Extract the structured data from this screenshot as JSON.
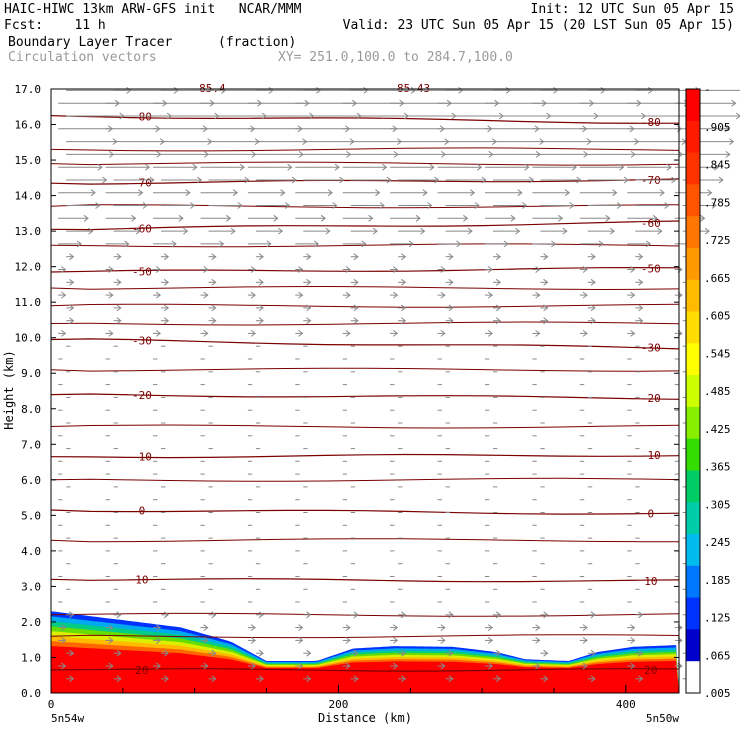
{
  "header": {
    "line1_left": "HAIC-HIWC 13km ARW-GFS init   NCAR/MMM",
    "line1_right": "Init: 12 UTC Sun 05 Apr 15",
    "line2_left": "Fcst:    11 h",
    "line2_right": "Valid: 23 UTC Sun 05 Apr 15 (20 LST Sun 05 Apr 15)",
    "line3_left": "Boundary Layer Tracer",
    "line3_units": "(fraction)",
    "line4_left": "Circulation vectors",
    "line4_xy": "XY= 251.0,100.0 to 284.7,100.0"
  },
  "chart_data": {
    "type": "heatmap",
    "xlabel": "Distance (km)",
    "ylabel": "Height (km)",
    "xlim": [
      0,
      437
    ],
    "ylim": [
      0,
      17
    ],
    "x_ticks": [
      {
        "value": 0,
        "label": "0"
      },
      {
        "value": 200,
        "label": "200"
      },
      {
        "value": 400,
        "label": "400"
      }
    ],
    "x_end_labels": {
      "left": "5n54w",
      "right": "5n50w"
    },
    "y_ticks": [
      "0.0",
      "1.0",
      "2.0",
      "3.0",
      "4.0",
      "5.0",
      "6.0",
      "7.0",
      "8.0",
      "9.0",
      "10.0",
      "11.0",
      "12.0",
      "13.0",
      "14.0",
      "15.0",
      "16.0",
      "17.0"
    ],
    "colorbar": {
      "labels": [
        "-",
        ".905",
        ".845",
        ".785",
        ".725",
        ".665",
        ".605",
        ".545",
        ".485",
        ".425",
        ".365",
        ".305",
        ".245",
        ".185",
        ".125",
        ".065",
        ".005"
      ],
      "colors": [
        "#ff0000",
        "#ff1a00",
        "#ff3300",
        "#ff5500",
        "#ff7700",
        "#ff9900",
        "#ffbb00",
        "#ffdd00",
        "#ffff00",
        "#ccff00",
        "#88ee00",
        "#33dd00",
        "#00cc66",
        "#00ccaa",
        "#00bbee",
        "#0077ff",
        "#0033ff",
        "#0000cc",
        "#ffffff"
      ]
    },
    "tracer_top_km": [
      {
        "x": 0,
        "y": 2.3
      },
      {
        "x": 40,
        "y": 2.1
      },
      {
        "x": 90,
        "y": 1.85
      },
      {
        "x": 125,
        "y": 1.45
      },
      {
        "x": 150,
        "y": 0.9
      },
      {
        "x": 185,
        "y": 0.9
      },
      {
        "x": 210,
        "y": 1.25
      },
      {
        "x": 240,
        "y": 1.32
      },
      {
        "x": 280,
        "y": 1.3
      },
      {
        "x": 310,
        "y": 1.15
      },
      {
        "x": 330,
        "y": 0.95
      },
      {
        "x": 360,
        "y": 0.9
      },
      {
        "x": 380,
        "y": 1.15
      },
      {
        "x": 405,
        "y": 1.3
      },
      {
        "x": 437,
        "y": 1.35
      }
    ],
    "temperature_contours": [
      {
        "label": "-80",
        "y_left": 16.25,
        "y_right": 16.05
      },
      {
        "label": "-70",
        "y_left": 14.35,
        "y_right": 14.45
      },
      {
        "label": "-60",
        "y_left": 13.05,
        "y_right": 13.25
      },
      {
        "label": "-50",
        "y_left": 11.85,
        "y_right": 11.95
      },
      {
        "label": "-30",
        "y_left": 9.95,
        "y_right": 9.7
      },
      {
        "label": "-20",
        "y_left": 8.4,
        "y_right": 8.3
      },
      {
        "label": "-10",
        "y_left": 6.65,
        "y_right": 6.7
      },
      {
        "label": "0",
        "y_left": 5.15,
        "y_right": 5.05
      },
      {
        "label": "10",
        "y_left": 3.2,
        "y_right": 3.15
      },
      {
        "label": "20",
        "y_left": 0.65,
        "y_right": 0.65
      }
    ],
    "top_contour_labels": [
      "-85.4",
      "-85.43"
    ]
  }
}
